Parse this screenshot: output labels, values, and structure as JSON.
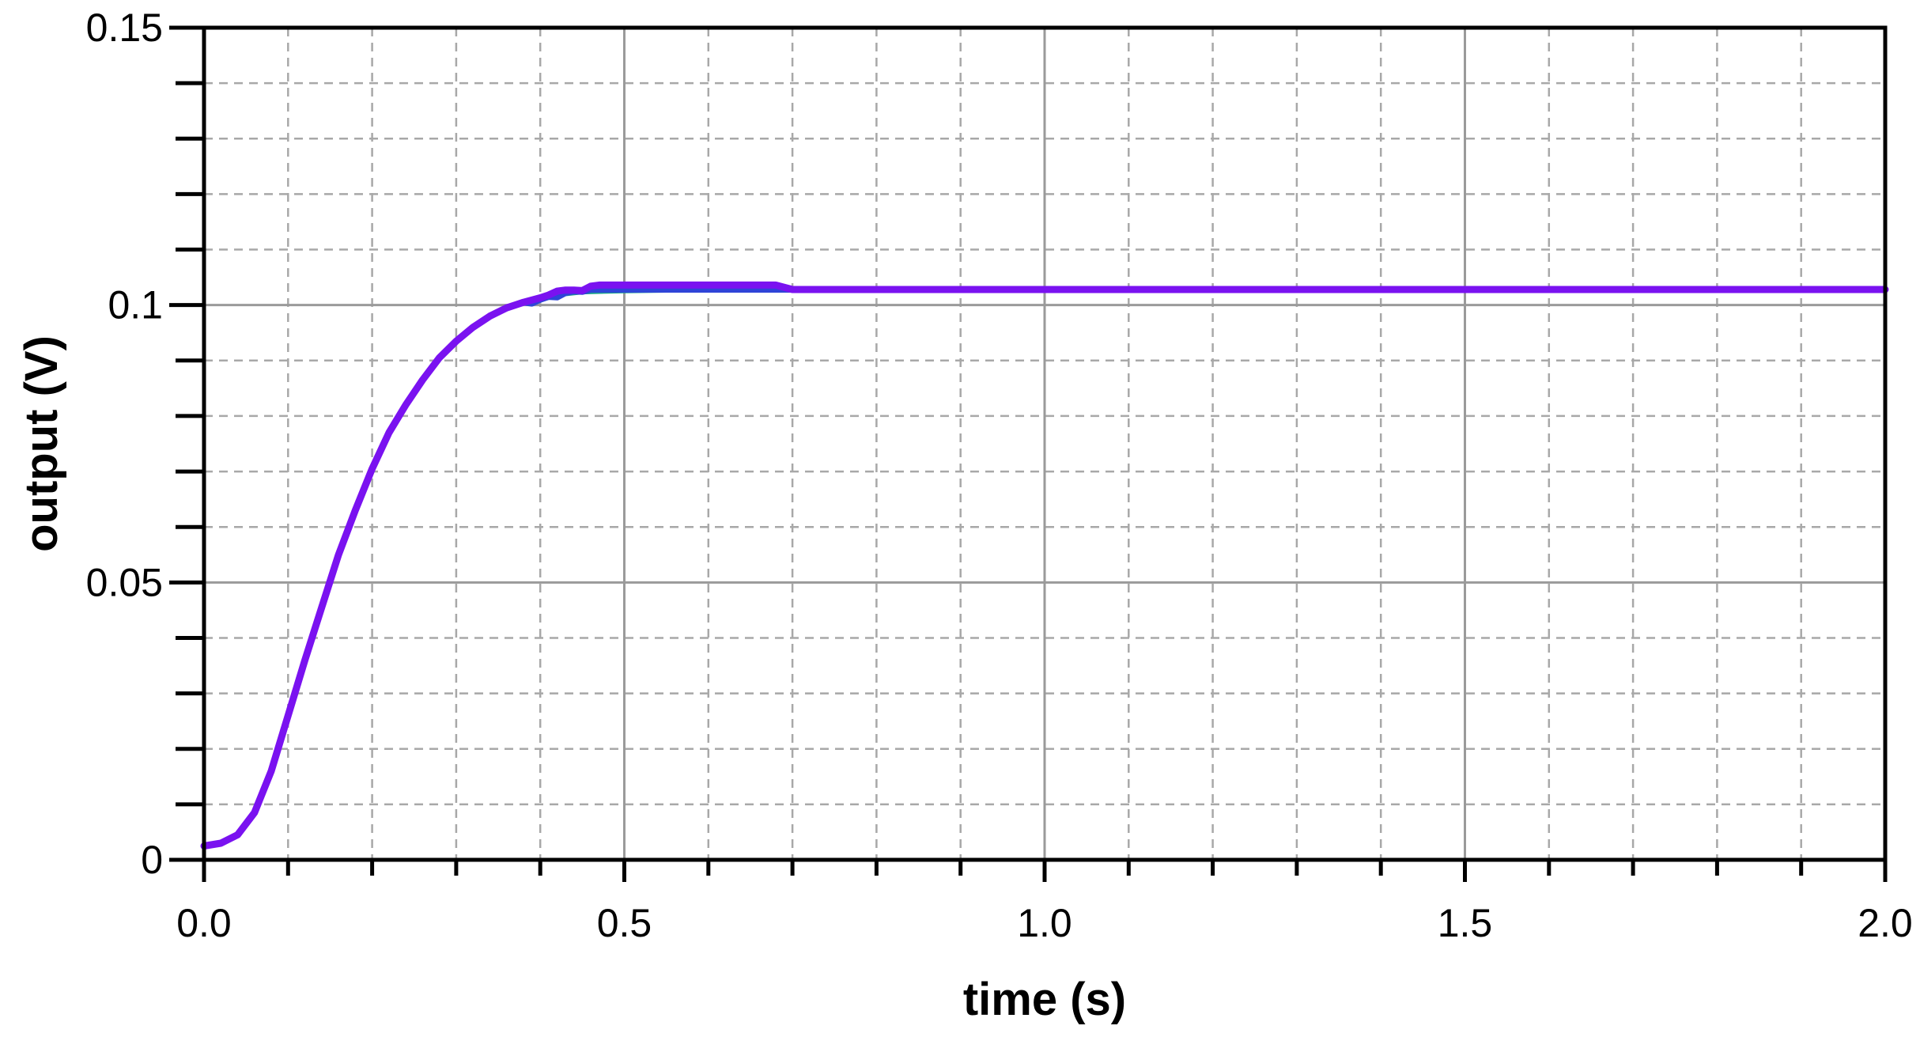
{
  "chart_data": {
    "type": "line",
    "title": "",
    "xlabel": "time (s)",
    "ylabel": "output (V)",
    "xlim": [
      0,
      2
    ],
    "ylim": [
      0,
      0.15
    ],
    "x_ticks": [
      0,
      0.5,
      1.0,
      1.5,
      2.0
    ],
    "x_tick_labels": [
      "0.0",
      "0.5",
      "1.0",
      "1.5",
      "2.0"
    ],
    "y_ticks": [
      0,
      0.05,
      0.1,
      0.15
    ],
    "y_tick_labels": [
      "0",
      "0.05",
      "0.1",
      "0.15"
    ],
    "x_minor_step": 0.1,
    "y_minor_step": 0.01,
    "grid": true,
    "legend": "none",
    "series": [
      {
        "color": "#1aa08a",
        "x": [
          0,
          0.02,
          0.04,
          0.06,
          0.08,
          0.1,
          0.12,
          0.14,
          0.16,
          0.18,
          0.2,
          0.22,
          0.24,
          0.26,
          0.28,
          0.3,
          0.32,
          0.34,
          0.36,
          0.38,
          0.4,
          0.42,
          0.45,
          0.5,
          0.55,
          0.6,
          0.65,
          0.7,
          0.75,
          1.0,
          1.5,
          2.0
        ],
        "y": [
          0.0025,
          0.003,
          0.0045,
          0.0085,
          0.016,
          0.026,
          0.036,
          0.0455,
          0.055,
          0.063,
          0.0705,
          0.077,
          0.082,
          0.0865,
          0.0905,
          0.0935,
          0.096,
          0.098,
          0.0995,
          0.1005,
          0.1013,
          0.102,
          0.1025,
          0.1027,
          0.1028,
          0.1028,
          0.1028,
          0.1028,
          0.1028,
          0.1028,
          0.1028,
          0.1028
        ]
      },
      {
        "color": "#2f44d8",
        "x": [
          0,
          0.02,
          0.04,
          0.06,
          0.08,
          0.1,
          0.12,
          0.14,
          0.16,
          0.18,
          0.2,
          0.22,
          0.24,
          0.26,
          0.28,
          0.3,
          0.32,
          0.34,
          0.36,
          0.38,
          0.39,
          0.4,
          0.41,
          0.42,
          0.43,
          0.44,
          0.45,
          0.46,
          0.5,
          0.55,
          0.6,
          0.65,
          0.7,
          0.75,
          1.0,
          1.5,
          2.0
        ],
        "y": [
          0.0025,
          0.003,
          0.0045,
          0.0085,
          0.016,
          0.026,
          0.036,
          0.0455,
          0.055,
          0.063,
          0.0705,
          0.077,
          0.082,
          0.0865,
          0.0905,
          0.0935,
          0.096,
          0.098,
          0.0995,
          0.1005,
          0.1003,
          0.101,
          0.1015,
          0.1014,
          0.1022,
          0.1025,
          0.1024,
          0.1028,
          0.1028,
          0.1028,
          0.1028,
          0.1028,
          0.1028,
          0.1028,
          0.1028,
          0.1028,
          0.1028
        ]
      },
      {
        "color": "#7a12f0",
        "x": [
          0,
          0.02,
          0.04,
          0.06,
          0.08,
          0.1,
          0.12,
          0.14,
          0.16,
          0.18,
          0.2,
          0.22,
          0.24,
          0.26,
          0.28,
          0.3,
          0.32,
          0.34,
          0.36,
          0.38,
          0.4,
          0.41,
          0.42,
          0.43,
          0.44,
          0.45,
          0.46,
          0.47,
          0.5,
          0.55,
          0.6,
          0.65,
          0.68,
          0.7,
          0.72,
          0.75,
          1.0,
          1.5,
          2.0
        ],
        "y": [
          0.0025,
          0.003,
          0.0045,
          0.0085,
          0.016,
          0.026,
          0.036,
          0.0455,
          0.055,
          0.063,
          0.0705,
          0.077,
          0.082,
          0.0865,
          0.0905,
          0.0935,
          0.096,
          0.098,
          0.0995,
          0.1005,
          0.1013,
          0.1018,
          0.1025,
          0.1027,
          0.1027,
          0.1026,
          0.1034,
          0.1036,
          0.1036,
          0.1036,
          0.1036,
          0.1036,
          0.1036,
          0.1028,
          0.1028,
          0.1028,
          0.1028,
          0.1028,
          0.1028
        ]
      }
    ]
  }
}
